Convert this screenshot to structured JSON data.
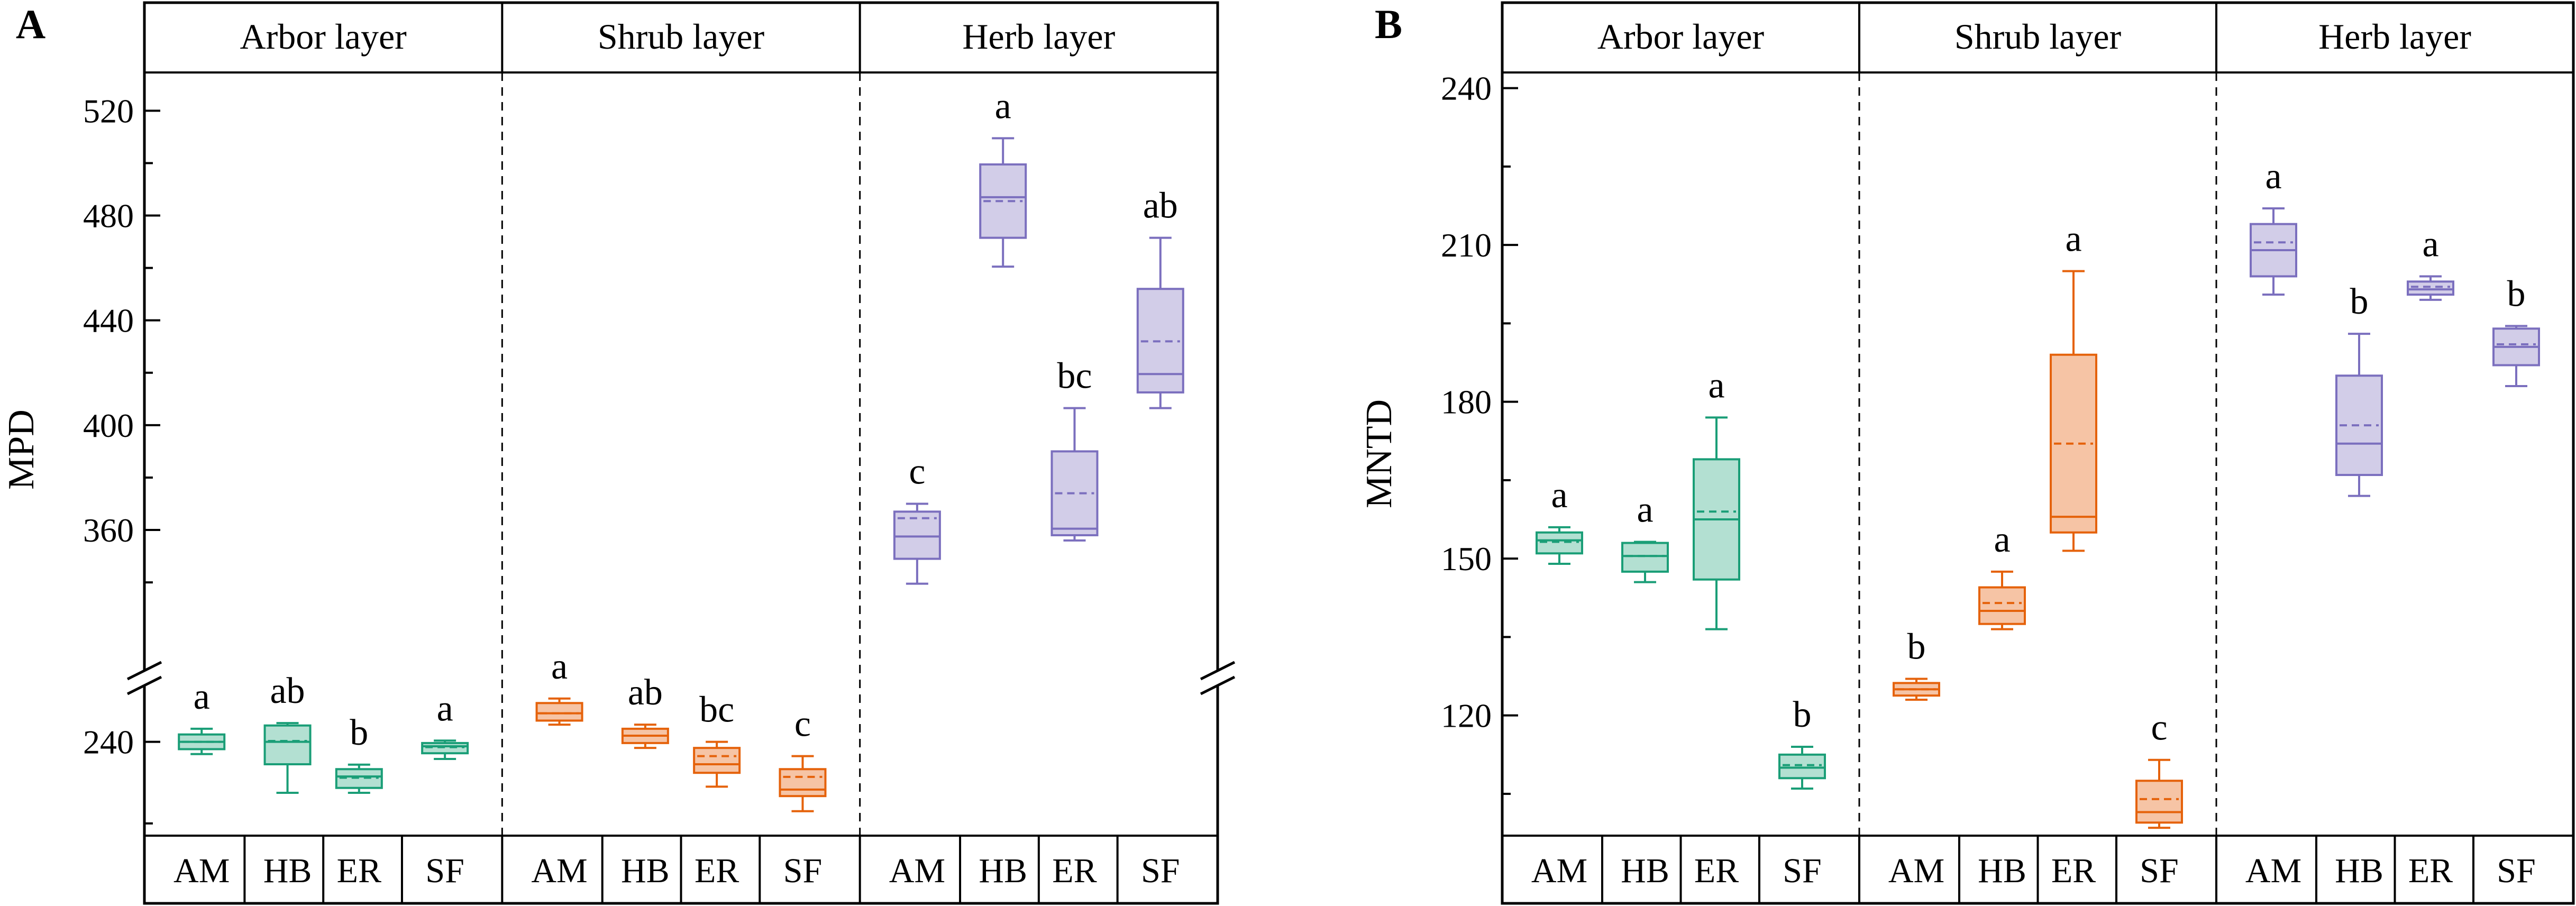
{
  "chart_data": [
    {
      "panel_label": "A",
      "type": "box",
      "ylabel": "MPD",
      "axis_break": true,
      "lower_segment": {
        "ylim": [
          217,
          252
        ],
        "ticks": [
          240
        ]
      },
      "upper_segment": {
        "ylim": [
          315,
          535
        ],
        "ticks": [
          360,
          400,
          440,
          480,
          520
        ]
      },
      "layers": [
        {
          "name": "Arbor layer",
          "color": "#1a9e77",
          "fill": "#b3e0d2",
          "boxes": [
            {
              "group": "AM",
              "letter": "a",
              "min": 237.0,
              "q1": 238.2,
              "median": 240.0,
              "mean": 240.0,
              "q3": 241.8,
              "max": 243.2
            },
            {
              "group": "HB",
              "letter": "ab",
              "min": 227.5,
              "q1": 234.5,
              "median": 240.0,
              "mean": 240.2,
              "q3": 244.0,
              "max": 244.6
            },
            {
              "group": "ER",
              "letter": "b",
              "min": 227.5,
              "q1": 228.7,
              "median": 231.5,
              "mean": 231.2,
              "q3": 233.3,
              "max": 234.4
            },
            {
              "group": "SF",
              "letter": "a",
              "min": 235.8,
              "q1": 237.2,
              "median": 238.9,
              "mean": 238.7,
              "q3": 239.7,
              "max": 240.3
            }
          ]
        },
        {
          "name": "Shrub layer",
          "color": "#e5620b",
          "fill": "#f6c4a5",
          "boxes": [
            {
              "group": "AM",
              "letter": "a",
              "min": 244.2,
              "q1": 245.2,
              "median": 247.0,
              "mean": 247.0,
              "q3": 249.5,
              "max": 250.6
            },
            {
              "group": "HB",
              "letter": "ab",
              "min": 238.5,
              "q1": 239.7,
              "median": 241.5,
              "mean": 241.5,
              "q3": 243.2,
              "max": 244.2
            },
            {
              "group": "ER",
              "letter": "bc",
              "min": 229.0,
              "q1": 232.4,
              "median": 234.5,
              "mean": 236.5,
              "q3": 238.5,
              "max": 240.0
            },
            {
              "group": "SF",
              "letter": "c",
              "min": 223.0,
              "q1": 226.7,
              "median": 228.3,
              "mean": 231.4,
              "q3": 233.3,
              "max": 236.5
            }
          ]
        },
        {
          "name": "Herb layer",
          "color": "#7b6fbe",
          "fill": "#d2cde8",
          "boxes": [
            {
              "group": "AM",
              "letter": "c",
              "min": 339.5,
              "q1": 349.0,
              "median": 357.5,
              "mean": 364.5,
              "q3": 367.0,
              "max": 370.0
            },
            {
              "group": "HB",
              "letter": "a",
              "min": 460.5,
              "q1": 471.5,
              "median": 487.0,
              "mean": 485.5,
              "q3": 499.5,
              "max": 509.5
            },
            {
              "group": "ER",
              "letter": "bc",
              "min": 356.0,
              "q1": 358.0,
              "median": 360.5,
              "mean": 374.0,
              "q3": 390.0,
              "max": 406.5
            },
            {
              "group": "SF",
              "letter": "ab",
              "min": 406.5,
              "q1": 412.5,
              "median": 419.5,
              "mean": 432.0,
              "q3": 452.0,
              "max": 471.5
            }
          ]
        }
      ]
    },
    {
      "panel_label": "B",
      "type": "box",
      "ylabel": "MNTD",
      "axis_break": false,
      "ylim": [
        97,
        243
      ],
      "ticks": [
        120,
        150,
        180,
        210,
        240
      ],
      "layers": [
        {
          "name": "Arbor layer",
          "color": "#1a9e77",
          "fill": "#b3e0d2",
          "boxes": [
            {
              "group": "AM",
              "letter": "a",
              "min": 149.0,
              "q1": 151.0,
              "median": 153.5,
              "mean": 153.2,
              "q3": 155.0,
              "max": 156.0
            },
            {
              "group": "HB",
              "letter": "a",
              "min": 145.5,
              "q1": 147.5,
              "median": 150.5,
              "mean": 150.5,
              "q3": 153.0,
              "max": 153.2
            },
            {
              "group": "ER",
              "letter": "a",
              "min": 136.5,
              "q1": 146.0,
              "median": 157.5,
              "mean": 159.0,
              "q3": 169.0,
              "max": 177.0
            },
            {
              "group": "SF",
              "letter": "b",
              "min": 106.0,
              "q1": 108.0,
              "median": 110.0,
              "mean": 110.5,
              "q3": 112.5,
              "max": 114.0
            }
          ]
        },
        {
          "name": "Shrub layer",
          "color": "#e5620b",
          "fill": "#f6c4a5",
          "boxes": [
            {
              "group": "AM",
              "letter": "b",
              "min": 123.0,
              "q1": 123.8,
              "median": 125.0,
              "mean": 125.0,
              "q3": 126.2,
              "max": 127.0
            },
            {
              "group": "HB",
              "letter": "a",
              "min": 136.5,
              "q1": 137.5,
              "median": 140.0,
              "mean": 141.5,
              "q3": 144.5,
              "max": 147.5
            },
            {
              "group": "ER",
              "letter": "a",
              "min": 151.5,
              "q1": 155.0,
              "median": 158.0,
              "mean": 172.0,
              "q3": 189.0,
              "max": 205.0
            },
            {
              "group": "SF",
              "letter": "c",
              "min": 98.5,
              "q1": 99.5,
              "median": 101.5,
              "mean": 104.0,
              "q3": 107.5,
              "max": 111.5
            }
          ]
        },
        {
          "name": "Herb layer",
          "color": "#7b6fbe",
          "fill": "#d2cde8",
          "boxes": [
            {
              "group": "AM",
              "letter": "a",
              "min": 200.5,
              "q1": 204.0,
              "median": 209.0,
              "mean": 210.5,
              "q3": 214.0,
              "max": 217.0
            },
            {
              "group": "HB",
              "letter": "b",
              "min": 162.0,
              "q1": 166.0,
              "median": 172.0,
              "mean": 175.5,
              "q3": 185.0,
              "max": 193.0
            },
            {
              "group": "ER",
              "letter": "a",
              "min": 199.5,
              "q1": 200.5,
              "median": 201.5,
              "mean": 202.0,
              "q3": 203.0,
              "max": 204.0
            },
            {
              "group": "SF",
              "letter": "b",
              "min": 183.0,
              "q1": 187.0,
              "median": 190.5,
              "mean": 191.0,
              "q3": 194.0,
              "max": 194.5
            }
          ]
        }
      ]
    }
  ]
}
